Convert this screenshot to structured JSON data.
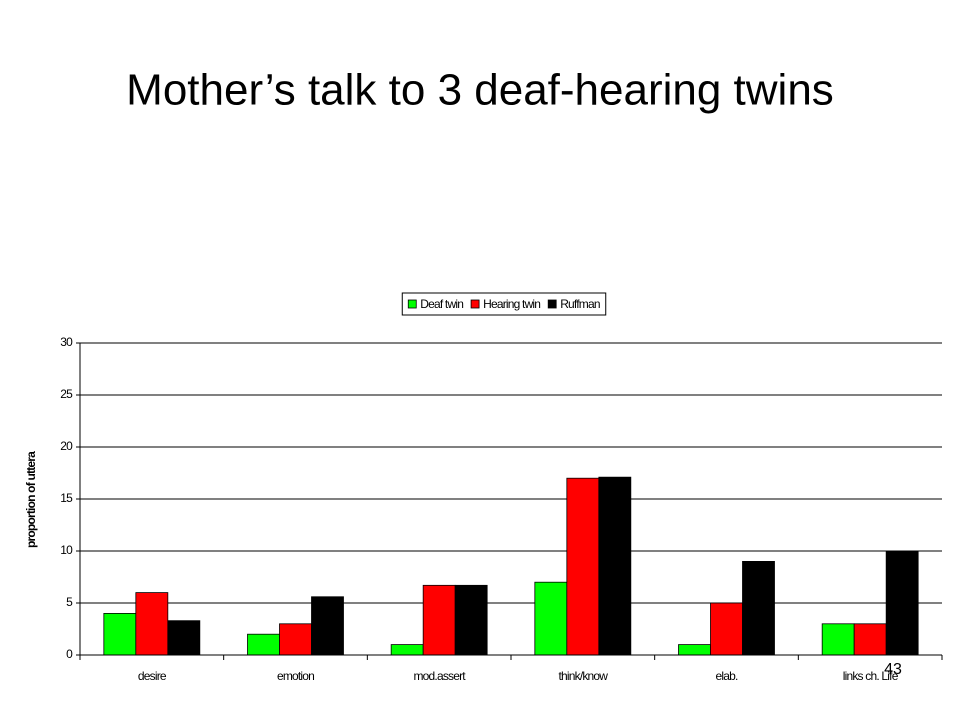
{
  "chart_data": {
    "type": "bar",
    "title": "Mother’s talk to 3 deaf-hearing twins",
    "y_label": "proportion of uttera",
    "categories": [
      "desire",
      "emotion",
      "mod.assert",
      "think/know",
      "elab.",
      "links ch. Life"
    ],
    "series": [
      {
        "name": "Deaf twin",
        "color": "#00ff00",
        "values": [
          4,
          2,
          1,
          7,
          1,
          3
        ]
      },
      {
        "name": "Hearing twin",
        "color": "#ff0000",
        "values": [
          6,
          3,
          6.7,
          17,
          5,
          3
        ]
      },
      {
        "name": "Ruffman",
        "color": "#000000",
        "values": [
          3.3,
          5.6,
          6.7,
          17.1,
          9,
          10
        ]
      }
    ],
    "ylim": [
      0,
      30
    ],
    "yticks": [
      0,
      5,
      10,
      15,
      20,
      25,
      30
    ],
    "grid": true,
    "legend": "top"
  },
  "slide_number": "43"
}
